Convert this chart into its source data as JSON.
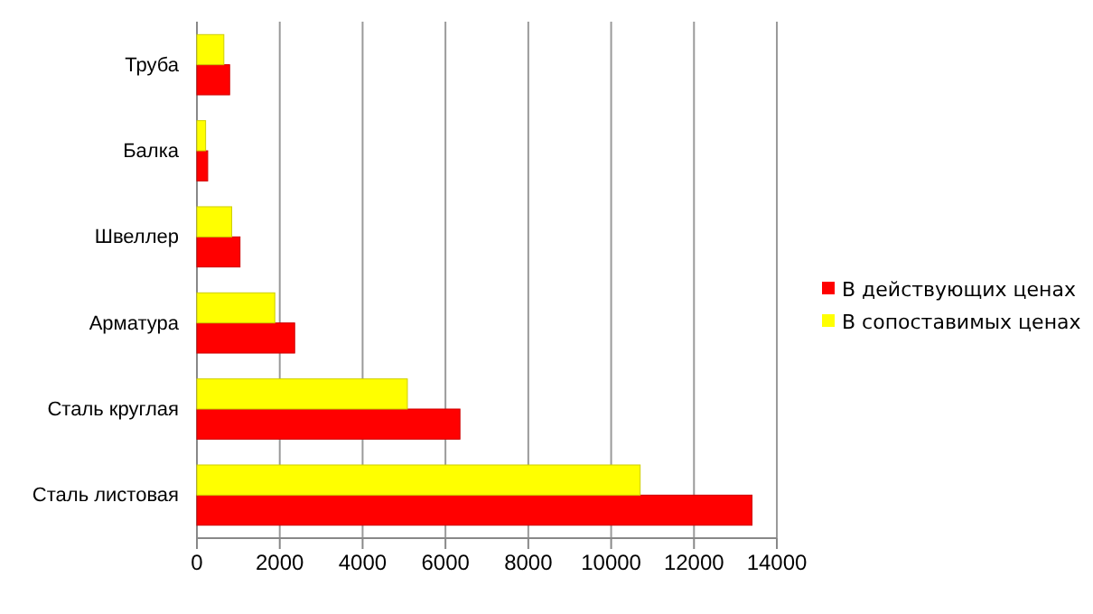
{
  "chart_data": {
    "type": "bar",
    "orientation": "horizontal",
    "categories": [
      "Труба",
      "Балка",
      "Швеллер",
      "Арматура",
      "Сталь круглая",
      "Сталь листовая"
    ],
    "series": [
      {
        "name": "В действующих ценах",
        "color": "#ff0000",
        "values": [
          790,
          260,
          1040,
          2360,
          6350,
          13400
        ]
      },
      {
        "name": "В сопоставимых ценах",
        "color": "#ffff00",
        "values": [
          650,
          210,
          840,
          1880,
          5080,
          10700
        ]
      }
    ],
    "xlim": [
      0,
      14000
    ],
    "xticks": [
      0,
      2000,
      4000,
      6000,
      8000,
      10000,
      12000,
      14000
    ],
    "grid": "x",
    "legend": "right"
  }
}
